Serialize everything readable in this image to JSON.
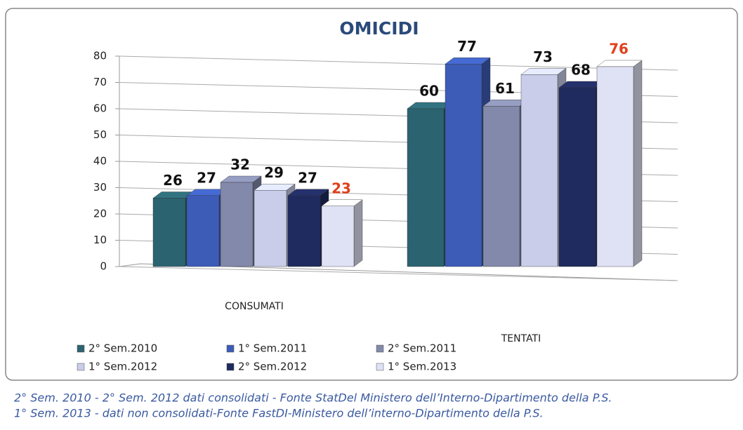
{
  "chart_data": {
    "type": "bar3d",
    "title": "OMICIDI",
    "categories": [
      "CONSUMATI",
      "TENTATI"
    ],
    "series": [
      {
        "name": "2° Sem.2010",
        "color": "#2b6470",
        "values": [
          26,
          60
        ]
      },
      {
        "name": "1° Sem.2011",
        "color": "#3d5cb8",
        "values": [
          27,
          77
        ]
      },
      {
        "name": "2° Sem.2011",
        "color": "#8289aa",
        "values": [
          32,
          61
        ]
      },
      {
        "name": "1° Sem.2012",
        "color": "#c9cdea",
        "values": [
          29,
          73
        ]
      },
      {
        "name": "2° Sem.2012",
        "color": "#1f2b5e",
        "values": [
          27,
          68
        ]
      },
      {
        "name": "1° Sem.2013",
        "color": "#dfe2f5",
        "values": [
          23,
          76
        ],
        "label_color": "#e0401c"
      }
    ],
    "ylim": [
      0,
      80
    ],
    "yticks": [
      0,
      10,
      20,
      30,
      40,
      50,
      60,
      70,
      80
    ],
    "grid": true,
    "notes": [
      "2° Sem. 2010 - 2° Sem. 2012 dati consolidati - Fonte StatDel Ministero dell’Interno-Dipartimento della P.S.",
      "1° Sem. 2013 - dati non consolidati-Fonte FastDI-Ministero dell’interno-Dipartimento della P.S."
    ]
  }
}
